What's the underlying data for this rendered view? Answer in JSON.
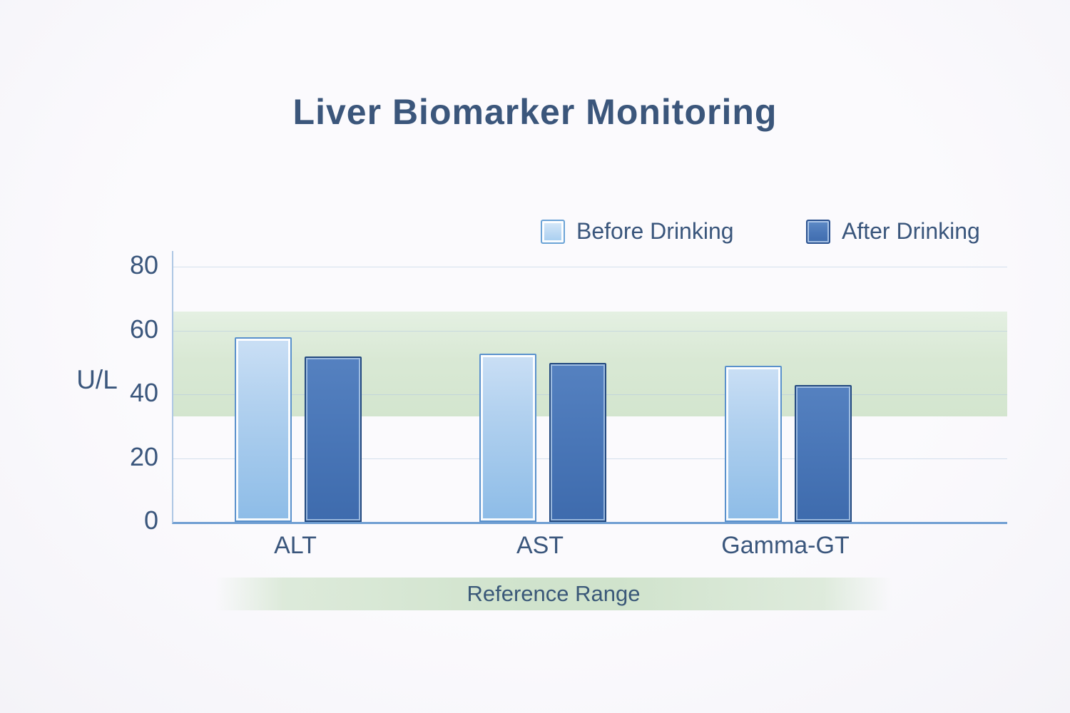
{
  "title": "Liver Biomarker Monitoring",
  "chart_data": {
    "type": "bar",
    "categories": [
      "ALT",
      "AST",
      "Gamma-GT"
    ],
    "series": [
      {
        "name": "Before Drinking",
        "values": [
          57,
          52,
          48
        ],
        "color": "#a9cef0"
      },
      {
        "name": "After Drinking",
        "values": [
          51,
          49,
          42
        ],
        "color": "#4a77b8"
      }
    ],
    "ylabel": "U/L",
    "yticks": [
      0,
      20,
      40,
      60,
      80
    ],
    "ylim": [
      0,
      85
    ],
    "grid": true,
    "legend_position": "top-right",
    "reference_band": {
      "label": "Reference Range",
      "from": 33,
      "to": 66,
      "color": "#d7e7d3"
    }
  },
  "colors": {
    "background": "#f8f7fb",
    "text": "#3a567c",
    "axis_line": "#6f9ed2",
    "gridline": "#b2c8e0",
    "band_green": "#d7e7d3",
    "bar_before_fill": "#a9cef0",
    "bar_before_border": "#5a91cc",
    "bar_after_fill": "#4a77b8",
    "bar_after_border": "#23497f"
  }
}
